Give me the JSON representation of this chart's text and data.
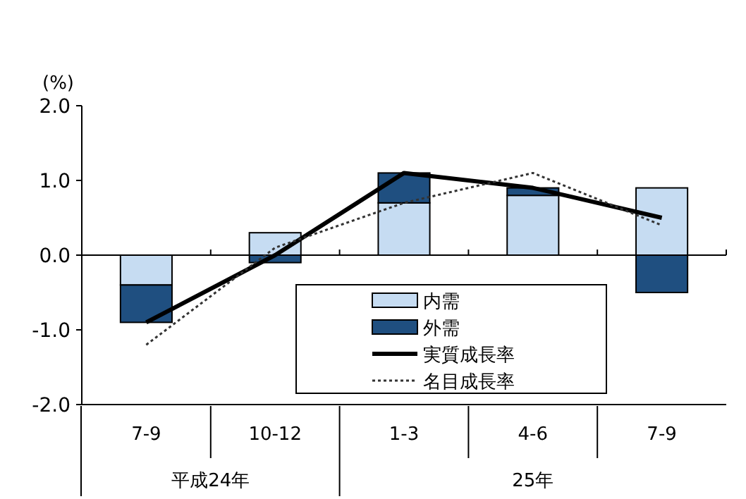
{
  "chart_data": {
    "type": "bar",
    "stacked": true,
    "ylabel": "(%)",
    "categories": [
      "7-9",
      "10-12",
      "1-3",
      "4-6",
      "7-9"
    ],
    "series": [
      {
        "name": "内需",
        "color": "#c6dcf2",
        "values": [
          -0.4,
          0.3,
          0.7,
          0.8,
          0.9
        ]
      },
      {
        "name": "外需",
        "color": "#1f4f80",
        "values": [
          -0.5,
          -0.1,
          0.4,
          0.1,
          -0.5
        ]
      },
      {
        "name": "実質成長率",
        "type": "line",
        "color": "#000000",
        "line_style": "solid",
        "values": [
          -0.9,
          0.0,
          1.1,
          0.9,
          0.5
        ]
      },
      {
        "name": "名目成長率",
        "type": "line",
        "color": "#333333",
        "line_style": "dotted",
        "values": [
          -1.2,
          0.1,
          0.7,
          1.1,
          0.4
        ]
      }
    ],
    "ylim": [
      -2.0,
      2.0
    ],
    "yticks": [
      {
        "value": -2,
        "label": "-2.0"
      },
      {
        "value": -1,
        "label": "-1.0"
      },
      {
        "value": 0,
        "label": "0.0"
      },
      {
        "value": 1,
        "label": "1.0"
      },
      {
        "value": 2,
        "label": "2.0"
      }
    ],
    "legend": "bottom",
    "annotations": [
      "平成24年",
      "25年"
    ]
  }
}
